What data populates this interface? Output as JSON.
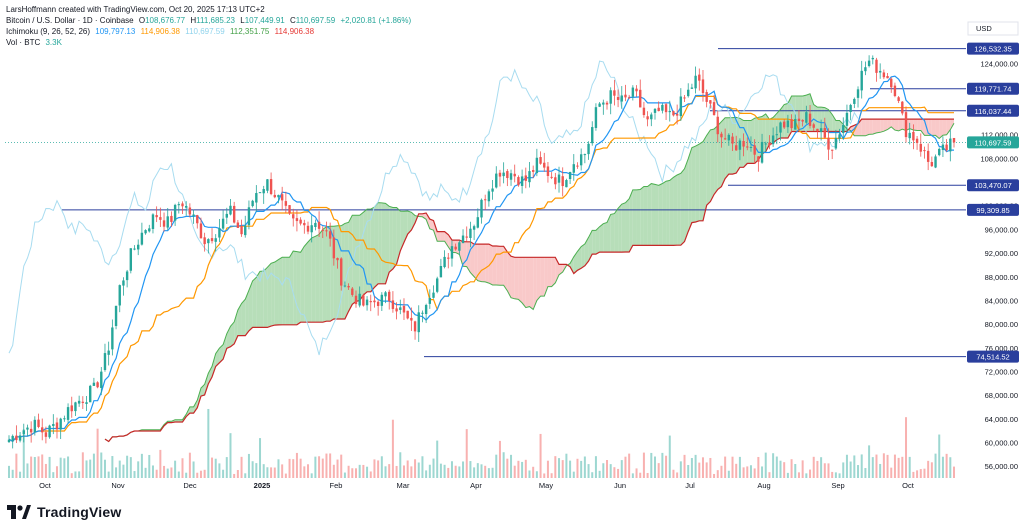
{
  "header": {
    "credit": "LarsHoffmann created with TradingView.com, Oct 20, 2025 17:13 UTC+2",
    "symbol_line": {
      "title": "Bitcoin / U.S. Dollar · 1D · Coinbase",
      "open_label": "O",
      "open": "108,676.77",
      "high_label": "H",
      "high": "111,685.23",
      "low_label": "L",
      "low": "107,449.91",
      "close_label": "C",
      "close": "110,697.59",
      "change": "+2,020.81 (+1.86%)"
    },
    "ichimoku_line": {
      "label": "Ichimoku (9, 26, 52, 26)",
      "v1": "109,797.13",
      "v2": "114,906.38",
      "v3": "110,697.59",
      "v4": "112,351.75",
      "v5": "114,906.38"
    },
    "vol_line": {
      "label": "Vol · BTC",
      "value": "3.3K"
    }
  },
  "logo": {
    "text": "TradingView",
    "icon": "tradingview-logo-icon"
  },
  "colors": {
    "up": "#26a69a",
    "down": "#ef5350",
    "tenkan": "#2196f3",
    "kijun": "#ff9800",
    "chikou": "#a8dcf0",
    "span_a": "#4caf50",
    "span_b": "#c62828",
    "cloud_bull": "#a5d6a7",
    "cloud_bear": "#f8bbbb",
    "hline": "#2a3f9d",
    "last": "#26a69a"
  },
  "chart_data": {
    "type": "candlestick",
    "symbol": "Bitcoin / U.S. Dollar",
    "currency": "USD",
    "x_tick_labels": [
      "Oct",
      "Nov",
      "Dec",
      "2025",
      "Feb",
      "Mar",
      "Apr",
      "May",
      "Jun",
      "Jul",
      "Aug",
      "Sep",
      "Oct"
    ],
    "y_tick_labels": [
      "124,000.00",
      "120,000.00",
      "116,000.00",
      "112,000.00",
      "108,000.00",
      "104,000.00",
      "100,000.00",
      "96,000.00",
      "92,000.00",
      "88,000.00",
      "84,000.00",
      "80,000.00",
      "76,000.00",
      "72,000.00",
      "68,000.00",
      "64,000.00",
      "60,000.00",
      "56,000.00"
    ],
    "y_ticks": [
      124000,
      120000,
      116000,
      112000,
      108000,
      104000,
      100000,
      96000,
      92000,
      88000,
      84000,
      80000,
      76000,
      72000,
      68000,
      64000,
      60000,
      56000
    ],
    "ylim": [
      54000,
      128000
    ],
    "horizontal_levels": [
      {
        "value": 126532.35,
        "label": "126,532.35"
      },
      {
        "value": 119771.74,
        "label": "119,771.74"
      },
      {
        "value": 116037.44,
        "label": "116,037.44"
      },
      {
        "value": 103470.07,
        "label": "103,470.07"
      },
      {
        "value": 99309.85,
        "label": "99,309.85"
      },
      {
        "value": 74514.52,
        "label": "74,514.52"
      }
    ],
    "last_price": {
      "value": 110697.59,
      "label": "110,697.59"
    },
    "close_trajectory": [
      [
        0,
        60500
      ],
      [
        0.02,
        62000
      ],
      [
        0.04,
        63000
      ],
      [
        0.06,
        61500
      ],
      [
        0.08,
        63500
      ],
      [
        0.1,
        66000
      ],
      [
        0.12,
        67500
      ],
      [
        0.14,
        69000
      ],
      [
        0.16,
        75000
      ],
      [
        0.18,
        86000
      ],
      [
        0.2,
        92000
      ],
      [
        0.22,
        96000
      ],
      [
        0.24,
        98500
      ],
      [
        0.26,
        97000
      ],
      [
        0.28,
        101000
      ],
      [
        0.3,
        98000
      ],
      [
        0.32,
        94000
      ],
      [
        0.34,
        96000
      ],
      [
        0.36,
        99000
      ],
      [
        0.38,
        95000
      ],
      [
        0.4,
        102000
      ],
      [
        0.42,
        104000
      ],
      [
        0.44,
        101000
      ],
      [
        0.46,
        97000
      ],
      [
        0.48,
        96500
      ],
      [
        0.5,
        97500
      ],
      [
        0.52,
        95000
      ],
      [
        0.54,
        88000
      ],
      [
        0.56,
        85000
      ],
      [
        0.58,
        83000
      ],
      [
        0.6,
        84000
      ],
      [
        0.62,
        84500
      ],
      [
        0.64,
        82000
      ],
      [
        0.66,
        79000
      ],
      [
        0.68,
        84500
      ],
      [
        0.7,
        88000
      ],
      [
        0.72,
        93000
      ],
      [
        0.74,
        95000
      ],
      [
        0.76,
        97500
      ],
      [
        0.78,
        103000
      ],
      [
        0.8,
        106000
      ],
      [
        0.82,
        105500
      ],
      [
        0.84,
        104000
      ],
      [
        0.86,
        107000
      ],
      [
        0.88,
        105500
      ],
      [
        0.9,
        104000
      ],
      [
        0.92,
        107500
      ],
      [
        0.94,
        109000
      ],
      [
        0.96,
        117000
      ],
      [
        0.98,
        118500
      ],
      [
        1.0,
        117500
      ],
      [
        1.02,
        119000
      ],
      [
        1.04,
        114000
      ],
      [
        1.06,
        116000
      ],
      [
        1.08,
        115000
      ],
      [
        1.1,
        118000
      ],
      [
        1.12,
        121500
      ],
      [
        1.14,
        117000
      ],
      [
        1.16,
        112000
      ],
      [
        1.18,
        110000
      ],
      [
        1.2,
        111000
      ],
      [
        1.22,
        108500
      ],
      [
        1.24,
        111500
      ],
      [
        1.26,
        114000
      ],
      [
        1.28,
        113500
      ],
      [
        1.3,
        115000
      ],
      [
        1.32,
        112500
      ],
      [
        1.34,
        110000
      ],
      [
        1.36,
        114000
      ],
      [
        1.38,
        120000
      ],
      [
        1.4,
        124500
      ],
      [
        1.42,
        123000
      ],
      [
        1.44,
        121000
      ],
      [
        1.46,
        113000
      ],
      [
        1.48,
        111000
      ],
      [
        1.5,
        107000
      ],
      [
        1.52,
        109000
      ],
      [
        1.54,
        110700
      ]
    ]
  }
}
